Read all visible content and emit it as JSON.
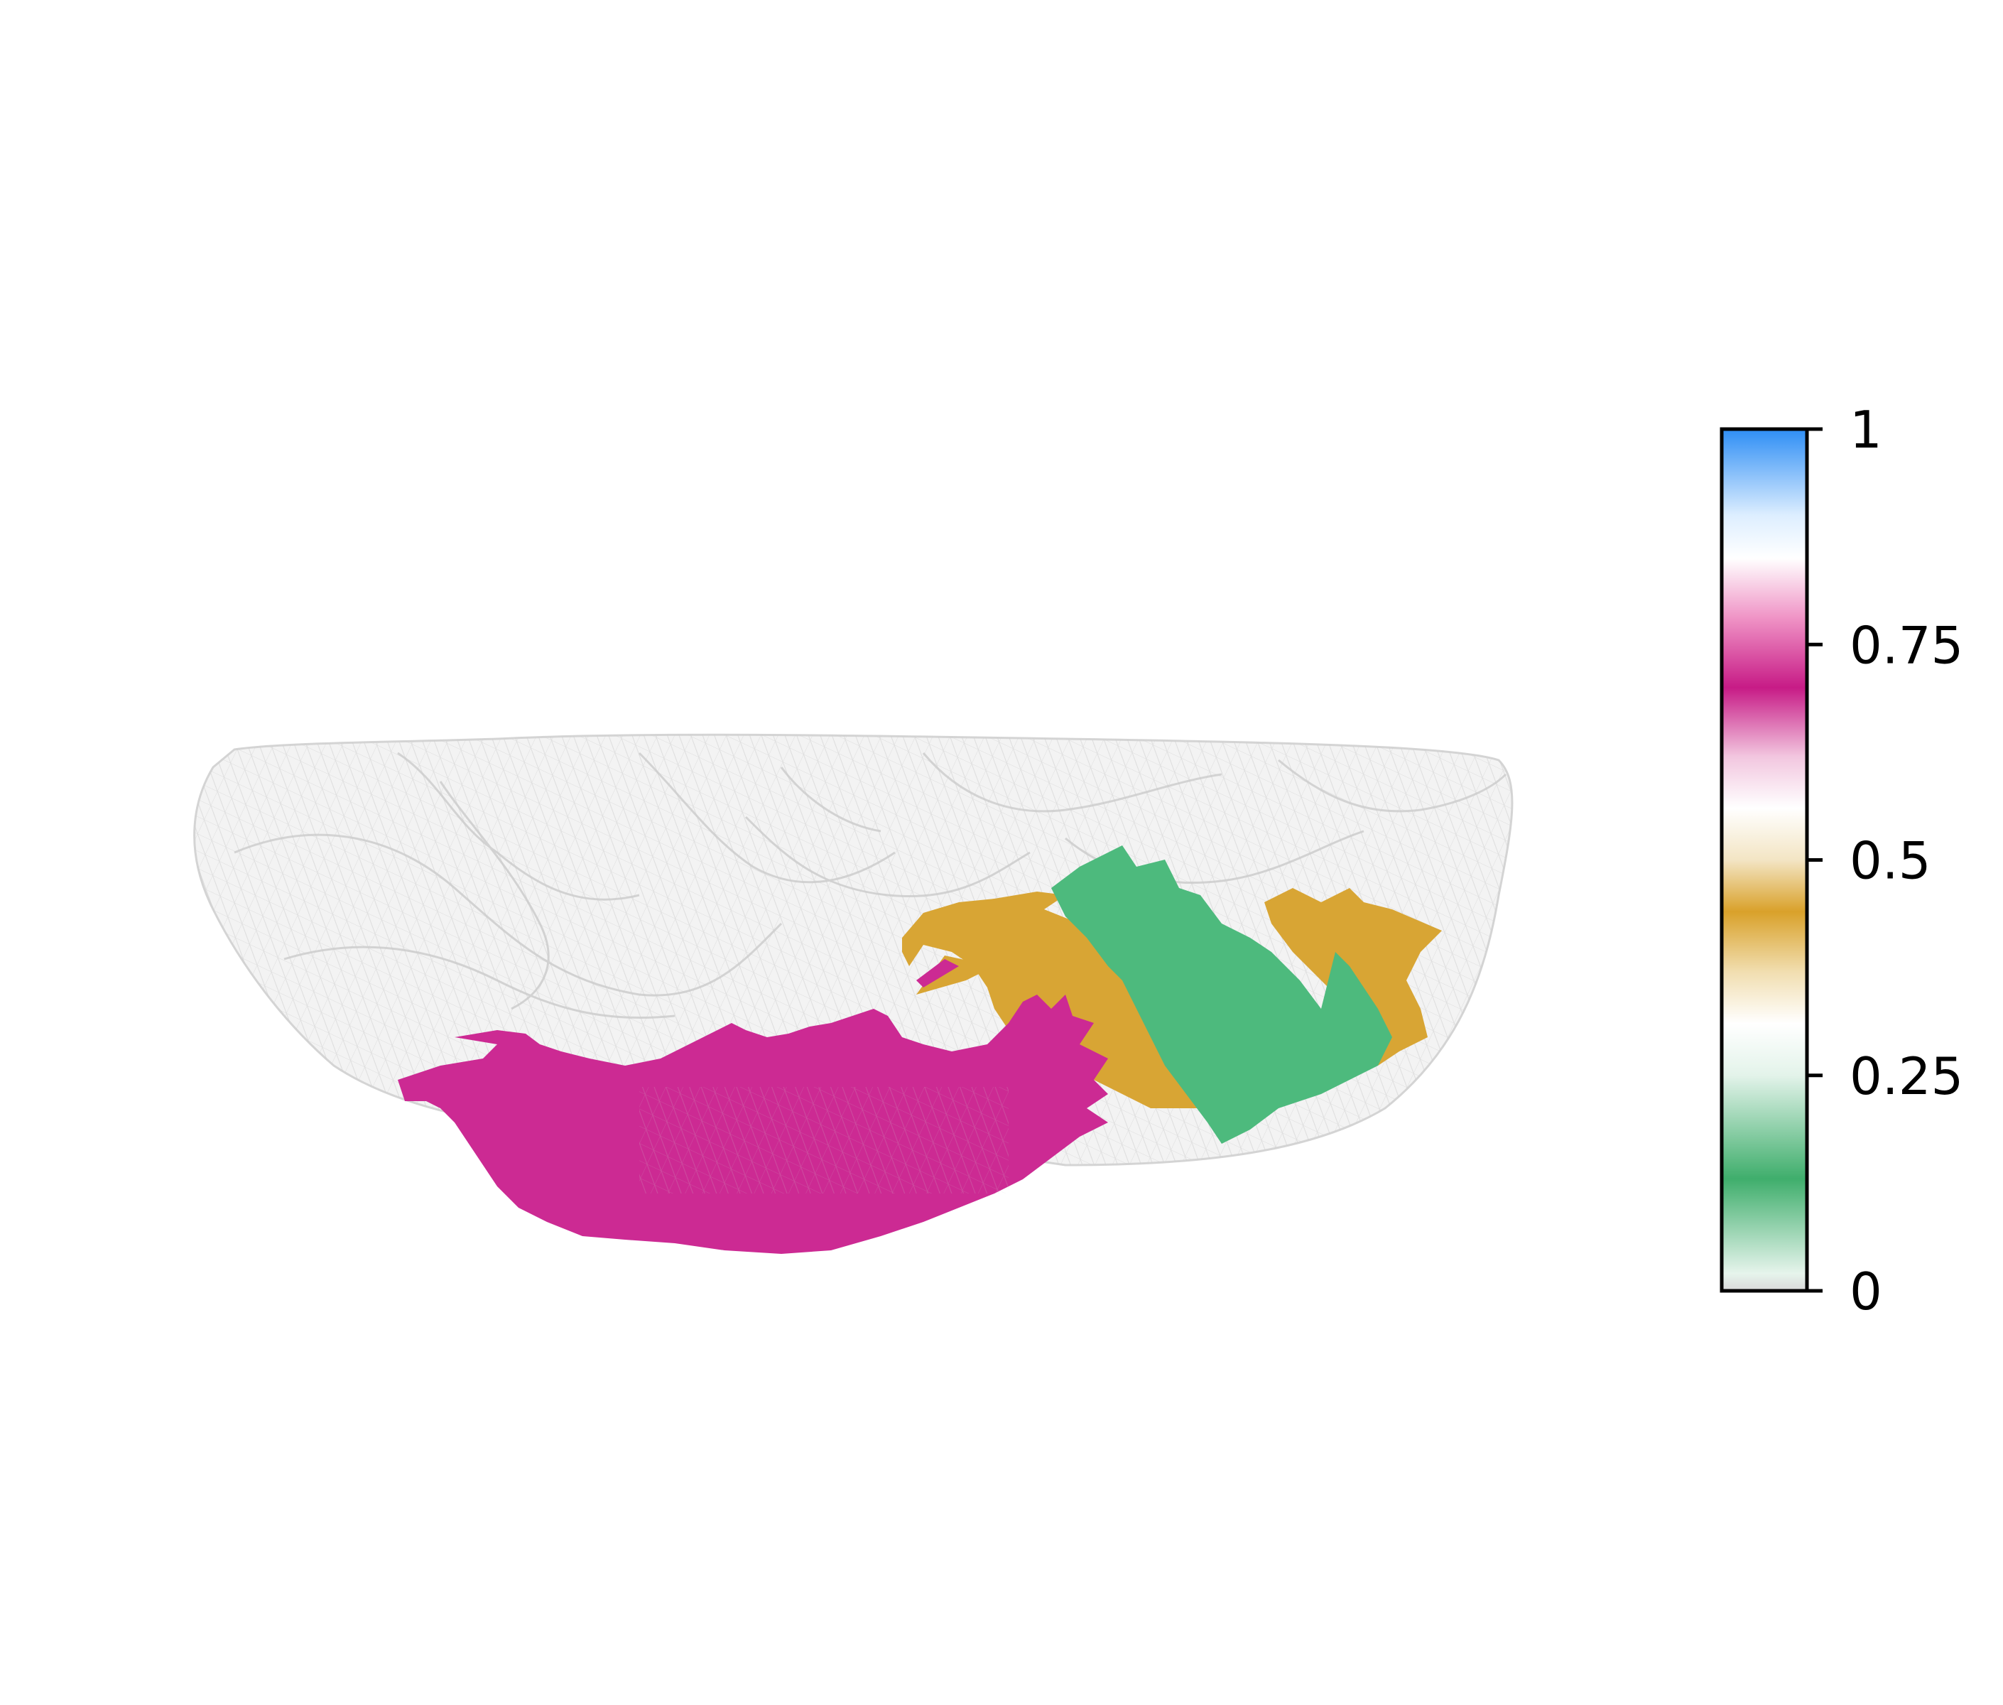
{
  "figure": {
    "background": "#ffffff",
    "mesh_color": "#d9d9d9",
    "regions": [
      {
        "name": "magenta region",
        "color": "#cc2a93"
      },
      {
        "name": "gold region",
        "color": "#d8a534"
      },
      {
        "name": "green region",
        "color": "#4dba7d"
      }
    ]
  },
  "colorbar": {
    "min": 0,
    "max": 1,
    "ticks": [
      {
        "value": 0,
        "label": "0"
      },
      {
        "value": 0.25,
        "label": "0.25"
      },
      {
        "value": 0.5,
        "label": "0.5"
      },
      {
        "value": 0.75,
        "label": "0.75"
      },
      {
        "value": 1,
        "label": "1"
      }
    ],
    "stops": [
      {
        "value": 0.0,
        "color": "#d9d9d9"
      },
      {
        "value": 0.02,
        "color": "#e6f4ec"
      },
      {
        "value": 0.13,
        "color": "#3fae6c"
      },
      {
        "value": 0.25,
        "color": "#e3f3ea"
      },
      {
        "value": 0.31,
        "color": "#ffffff"
      },
      {
        "value": 0.37,
        "color": "#f1deb0"
      },
      {
        "value": 0.44,
        "color": "#d9a12a"
      },
      {
        "value": 0.5,
        "color": "#f3e5c4"
      },
      {
        "value": 0.56,
        "color": "#ffffff"
      },
      {
        "value": 0.62,
        "color": "#f2c6df"
      },
      {
        "value": 0.7,
        "color": "#c71b86"
      },
      {
        "value": 0.78,
        "color": "#ef92c5"
      },
      {
        "value": 0.85,
        "color": "#ffffff"
      },
      {
        "value": 0.9,
        "color": "#ddeeff"
      },
      {
        "value": 1.0,
        "color": "#2e8ef5"
      }
    ]
  }
}
